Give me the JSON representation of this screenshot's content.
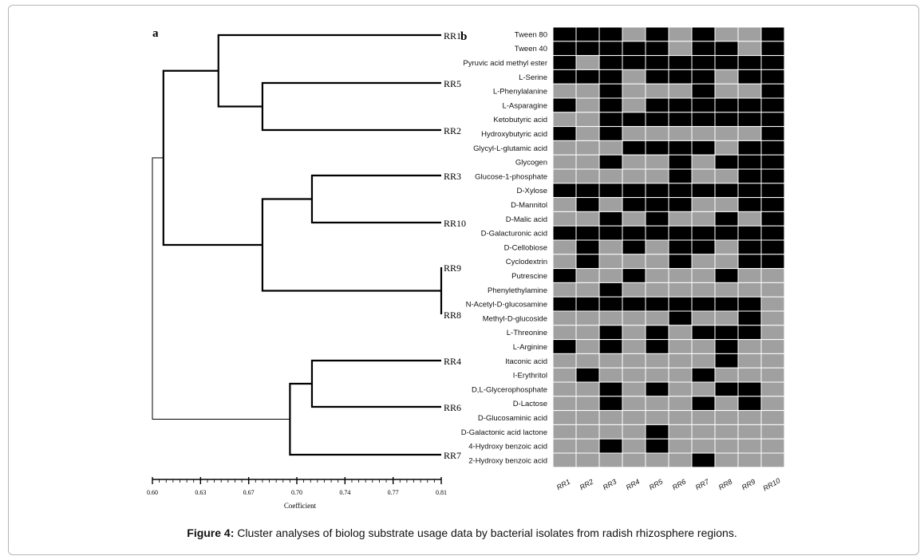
{
  "figure": {
    "caption_label": "Figure 4:",
    "caption_text": " Cluster analyses of biolog substrate usage data by bacterial isolates from radish rhizosphere regions."
  },
  "chart_data": [
    {
      "type": "dendrogram",
      "panel_label": "a",
      "xlabel": "Coefficient",
      "xlim": [
        0.6,
        0.81
      ],
      "ticks": [
        "0.60",
        "0.63",
        "0.67",
        "0.70",
        "0.74",
        "0.77",
        "0.81"
      ],
      "leaves": [
        "RR1",
        "RR5",
        "RR2",
        "RR3",
        "RR10",
        "RR9",
        "RR8",
        "RR4",
        "RR6",
        "RR7"
      ],
      "merges": [
        {
          "left": "RR9",
          "right": "RR8",
          "coefficient": 0.81
        },
        {
          "left": "RR3",
          "right": "RR10",
          "coefficient": 0.716
        },
        {
          "left": "RR4",
          "right": "RR6",
          "coefficient": 0.716
        },
        {
          "left": "RR5",
          "right": "RR2",
          "coefficient": 0.68
        },
        {
          "left": "RR1",
          "right": "RR5+RR2",
          "coefficient": 0.648
        },
        {
          "left": "RR3+RR10",
          "right": "RR9+RR8",
          "coefficient": 0.68
        },
        {
          "left": "RR4+RR6",
          "right": "RR7",
          "coefficient": 0.7
        },
        {
          "left": "RR1+RR5+RR2",
          "right": "RR3+RR10+RR9+RR8",
          "coefficient": 0.608
        },
        {
          "left": "cluster1",
          "right": "RR4+RR6+RR7",
          "coefficient": 0.6
        }
      ]
    },
    {
      "type": "heatmap",
      "panel_label": "b",
      "columns": [
        "RR1",
        "RR2",
        "RR3",
        "RR4",
        "RR5",
        "RR6",
        "RR7",
        "RR8",
        "RR9",
        "RR10"
      ],
      "rows": [
        "Tween 80",
        "Tween 40",
        "Pyruvic acid methyl ester",
        "L-Serine",
        "L-Phenylalanine",
        "L-Asparagine",
        "Ketobutyric acid",
        "Hydroxybutyric acid",
        "Glycyl-L-glutamic acid",
        "Glycogen",
        "Glucose-1-phosphate",
        "D-Xylose",
        "D-Mannitol",
        "D-Malic acid",
        "D-Galacturonic acid",
        "D-Cellobiose",
        "Cyclodextrin",
        "Putrescine",
        "Phenylethylamine",
        "N-Acetyl-D-glucosamine",
        "Methyl-D-glucoside",
        "L-Threonine",
        "L-Arginine",
        "Itaconic acid",
        "I-Erythritol",
        "D,L-Glycerophosphate",
        "D-Lactose",
        "D-Glucosaminic acid",
        "D-Galactonic acid lactone",
        "4-Hydroxy benzoic acid",
        "2-Hydroxy benzoic acid"
      ],
      "values": [
        [
          1,
          1,
          1,
          0,
          1,
          0,
          1,
          0,
          0,
          1
        ],
        [
          1,
          1,
          1,
          1,
          1,
          0,
          1,
          1,
          0,
          1
        ],
        [
          1,
          0,
          1,
          1,
          1,
          1,
          1,
          1,
          1,
          1
        ],
        [
          1,
          1,
          1,
          0,
          1,
          1,
          1,
          0,
          1,
          1
        ],
        [
          0,
          0,
          1,
          0,
          0,
          0,
          1,
          0,
          0,
          1
        ],
        [
          1,
          0,
          1,
          0,
          1,
          1,
          1,
          1,
          1,
          1
        ],
        [
          0,
          0,
          1,
          1,
          1,
          1,
          1,
          1,
          1,
          1
        ],
        [
          1,
          0,
          1,
          0,
          0,
          0,
          0,
          0,
          0,
          1
        ],
        [
          0,
          0,
          0,
          1,
          1,
          1,
          1,
          0,
          1,
          1
        ],
        [
          0,
          0,
          1,
          0,
          0,
          1,
          0,
          1,
          1,
          1
        ],
        [
          0,
          0,
          0,
          0,
          0,
          1,
          0,
          0,
          1,
          1
        ],
        [
          1,
          1,
          1,
          1,
          1,
          1,
          1,
          1,
          1,
          1
        ],
        [
          0,
          1,
          0,
          1,
          1,
          1,
          0,
          0,
          1,
          1
        ],
        [
          0,
          0,
          1,
          0,
          1,
          0,
          0,
          1,
          0,
          1
        ],
        [
          1,
          1,
          1,
          1,
          1,
          1,
          1,
          1,
          1,
          1
        ],
        [
          0,
          1,
          0,
          1,
          0,
          1,
          1,
          0,
          1,
          1
        ],
        [
          0,
          1,
          0,
          0,
          0,
          1,
          0,
          0,
          1,
          1
        ],
        [
          1,
          0,
          0,
          1,
          0,
          0,
          0,
          1,
          0,
          0
        ],
        [
          0,
          0,
          1,
          0,
          0,
          0,
          0,
          0,
          0,
          0
        ],
        [
          1,
          1,
          1,
          1,
          1,
          1,
          1,
          1,
          1,
          0
        ],
        [
          0,
          0,
          0,
          0,
          0,
          1,
          0,
          0,
          1,
          0
        ],
        [
          0,
          0,
          1,
          0,
          1,
          0,
          1,
          1,
          1,
          0
        ],
        [
          1,
          0,
          1,
          0,
          1,
          0,
          0,
          1,
          0,
          0
        ],
        [
          0,
          0,
          0,
          0,
          0,
          0,
          0,
          1,
          0,
          0
        ],
        [
          0,
          1,
          0,
          0,
          0,
          0,
          1,
          0,
          0,
          0
        ],
        [
          0,
          0,
          1,
          0,
          1,
          0,
          0,
          1,
          1,
          0
        ],
        [
          0,
          0,
          1,
          0,
          0,
          0,
          1,
          0,
          1,
          0
        ],
        [
          0,
          0,
          0,
          0,
          0,
          0,
          0,
          0,
          0,
          0
        ],
        [
          0,
          0,
          0,
          0,
          1,
          0,
          0,
          0,
          0,
          0
        ],
        [
          0,
          0,
          1,
          0,
          1,
          0,
          0,
          0,
          0,
          0
        ],
        [
          0,
          0,
          0,
          0,
          0,
          0,
          1,
          0,
          0,
          0
        ]
      ],
      "colors": {
        "positive": "#000000",
        "negative": "#a0a0a0",
        "gridline": "#ffffff"
      }
    }
  ]
}
